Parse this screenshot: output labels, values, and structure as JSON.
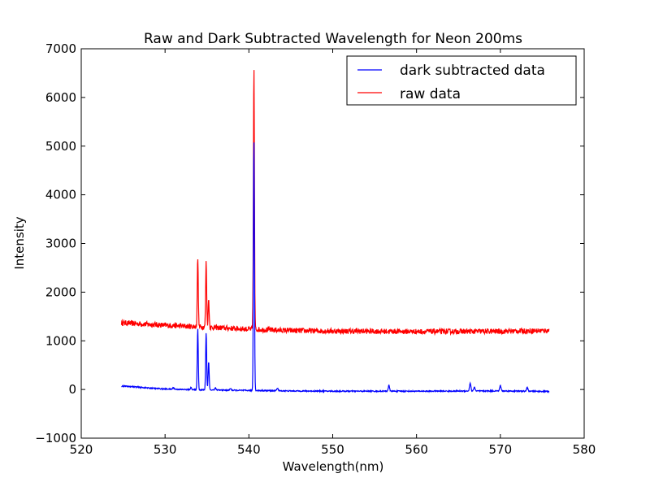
{
  "chart_data": {
    "type": "line",
    "title": "Raw and Dark Subtracted Wavelength for Neon 200ms",
    "xlabel": "Wavelength(nm)",
    "ylabel": "Intensity",
    "xlim": [
      520,
      580
    ],
    "ylim": [
      -1000,
      7000
    ],
    "x_ticks": [
      520,
      530,
      540,
      550,
      560,
      570,
      580
    ],
    "y_ticks": [
      -1000,
      0,
      1000,
      2000,
      3000,
      4000,
      5000,
      6000,
      7000
    ],
    "x_tick_labels": [
      "520",
      "530",
      "540",
      "550",
      "560",
      "570",
      "580"
    ],
    "y_tick_labels": [
      "−1000",
      "0",
      "1000",
      "2000",
      "3000",
      "4000",
      "5000",
      "6000",
      "7000"
    ],
    "grid": false,
    "legend_position": "top-right",
    "series": [
      {
        "name": "dark subtracted data",
        "color": "#0000ff",
        "x_range": [
          524.8,
          575.8
        ],
        "baseline": [
          [
            524.8,
            70
          ],
          [
            526,
            60
          ],
          [
            528,
            30
          ],
          [
            530,
            10
          ],
          [
            532,
            0
          ],
          [
            535,
            -10
          ],
          [
            540,
            -20
          ],
          [
            545,
            -30
          ],
          [
            550,
            -35
          ],
          [
            560,
            -35
          ],
          [
            570,
            -30
          ],
          [
            575.8,
            -40
          ]
        ],
        "peaks": [
          {
            "x": 531.0,
            "y": 40,
            "width": 0.08
          },
          {
            "x": 533.1,
            "y": 40,
            "width": 0.08
          },
          {
            "x": 533.9,
            "y": 1250,
            "width": 0.06
          },
          {
            "x": 534.9,
            "y": 1170,
            "width": 0.06
          },
          {
            "x": 535.2,
            "y": 570,
            "width": 0.06
          },
          {
            "x": 536.0,
            "y": 30,
            "width": 0.08
          },
          {
            "x": 537.8,
            "y": 20,
            "width": 0.08
          },
          {
            "x": 540.6,
            "y": 5150,
            "width": 0.06
          },
          {
            "x": 543.4,
            "y": 30,
            "width": 0.08
          },
          {
            "x": 556.7,
            "y": 80,
            "width": 0.08
          },
          {
            "x": 566.4,
            "y": 130,
            "width": 0.08
          },
          {
            "x": 566.9,
            "y": 50,
            "width": 0.08
          },
          {
            "x": 570.0,
            "y": 80,
            "width": 0.08
          },
          {
            "x": 573.2,
            "y": 40,
            "width": 0.08
          }
        ],
        "noise": 12
      },
      {
        "name": "raw data",
        "color": "#ff0000",
        "x_range": [
          524.8,
          575.8
        ],
        "baseline": [
          [
            524.8,
            1370
          ],
          [
            530,
            1320
          ],
          [
            535,
            1280
          ],
          [
            540,
            1240
          ],
          [
            545,
            1210
          ],
          [
            550,
            1200
          ],
          [
            560,
            1190
          ],
          [
            570,
            1195
          ],
          [
            575.8,
            1210
          ]
        ],
        "peaks": [
          {
            "x": 533.9,
            "y": 2700,
            "width": 0.06
          },
          {
            "x": 534.9,
            "y": 2620,
            "width": 0.06
          },
          {
            "x": 535.2,
            "y": 1850,
            "width": 0.06
          },
          {
            "x": 540.6,
            "y": 6600,
            "width": 0.06
          }
        ],
        "noise": 55
      }
    ]
  }
}
